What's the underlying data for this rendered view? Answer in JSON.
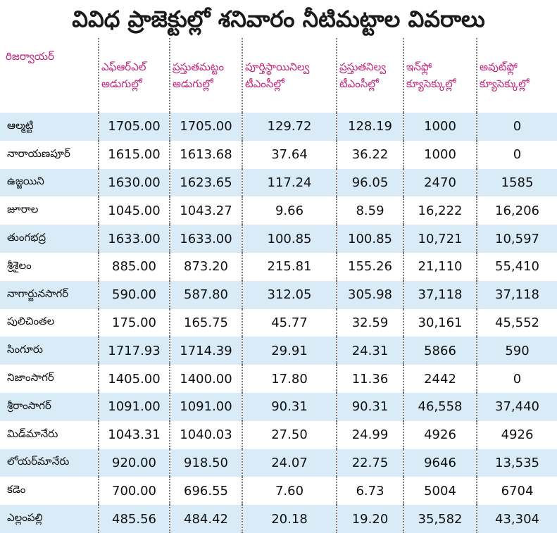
{
  "title": "వివిధ ప్రాజెక్టుల్లో  శనివారం నీటిమట్టాల వివరాలు",
  "columns": [
    {
      "line1": "రిజర్వాయర్",
      "line2": ""
    },
    {
      "line1": "ఎఫ్‌ఆర్‌ఎల్",
      "line2": "అడుగుల్లో"
    },
    {
      "line1": "ప్రస్తుతమట్టం",
      "line2": "అడుగుల్లో"
    },
    {
      "line1": "పూర్తిస్థాయినిల్వ",
      "line2": "టీఎంసీల్లో"
    },
    {
      "line1": "ప్రస్తుతనిల్వ",
      "line2": "టీఎంసీల్లో"
    },
    {
      "line1": "ఇన్‌ఫ్లో",
      "line2": "క్యూసెక్కుల్లో"
    },
    {
      "line1": "అవుట్‌ఫ్లో",
      "line2": "క్యూసెక్కుల్లో"
    }
  ],
  "rows": [
    [
      "ఆల్మట్టి",
      "1705.00",
      "1705.00",
      "129.72",
      "128.19",
      "1000",
      "0"
    ],
    [
      "నారాయణపూర్",
      "1615.00",
      "1613.68",
      "37.64",
      "36.22",
      "1000",
      "0"
    ],
    [
      "ఉజ్జయిని",
      "1630.00",
      "1623.65",
      "117.24",
      "96.05",
      "2470",
      "1585"
    ],
    [
      "జూరాల",
      "1045.00",
      "1043.27",
      "9.66",
      "8.59",
      "16,222",
      "16,206"
    ],
    [
      "తుంగభద్ర",
      "1633.00",
      "1633.00",
      "100.85",
      "100.85",
      "10,721",
      "10,597"
    ],
    [
      "శ్రీశైలం",
      "885.00",
      "873.20",
      "215.81",
      "155.26",
      "21,110",
      "55,410"
    ],
    [
      "నాగార్జునసాగర్",
      "590.00",
      "587.80",
      "312.05",
      "305.98",
      "37,118",
      "37,118"
    ],
    [
      "పులిచింతల",
      "175.00",
      "165.75",
      "45.77",
      "32.59",
      "30,161",
      "45,552"
    ],
    [
      "సింగూరు",
      "1717.93",
      "1714.39",
      "29.91",
      "24.31",
      "5866",
      "590"
    ],
    [
      "నిజాంసాగర్",
      "1405.00",
      "1400.00",
      "17.80",
      "11.36",
      "2442",
      "0"
    ],
    [
      "శ్రీరాంసాగర్",
      "1091.00",
      "1091.00",
      "90.31",
      "90.31",
      "46,558",
      "37,440"
    ],
    [
      "మిడ్‌మానేరు",
      "1043.31",
      "1040.03",
      "27.50",
      "24.99",
      "4926",
      "4926"
    ],
    [
      "లోయర్‌మానేరు",
      "920.00",
      "918.50",
      "24.07",
      "22.75",
      "9646",
      "13,535"
    ],
    [
      "కడెం",
      "700.00",
      "696.55",
      "7.60",
      "6.73",
      "5004",
      "6704"
    ],
    [
      "ఎల్లంపల్లి",
      "485.56",
      "484.42",
      "20.18",
      "19.20",
      "35,582",
      "43,304"
    ]
  ],
  "colors": {
    "header_text": "#c0247a",
    "row_stripe": "#d9ebf6",
    "title_text": "#1a1a1a"
  }
}
